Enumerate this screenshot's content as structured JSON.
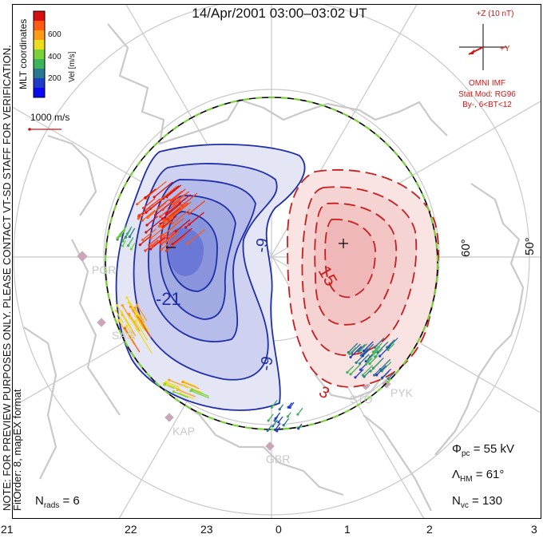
{
  "header": {
    "title": "14/Apr/2001 03:00–03:02 UT"
  },
  "side_text": {
    "coordinates": "MLT coordinates",
    "notice": "NOTE: FOR PREVIEW PURPOSES ONLY. PLEASE CONTACT VT-SD STAFF FOR VERIFICATION.",
    "fit": "FitOrder: 8, mapEX format"
  },
  "colorbar": {
    "label": "Vel [m/s]",
    "ticks": [
      "600",
      "400",
      "200"
    ],
    "colors": [
      "#d90f0f",
      "#ff5a14",
      "#ff9b19",
      "#eedc1e",
      "#78d23c",
      "#3cb45a",
      "#287890",
      "#1e3cc8",
      "#0a0af0"
    ]
  },
  "scale_vector": {
    "label": "1000 m/s"
  },
  "imf": {
    "z_label": "+Z (10 nT)",
    "y_label": "+Y",
    "source": "OMNI IMF",
    "model": "Stat Mod: RG96",
    "condition": "By-, 6<BT<12"
  },
  "latitude_labels": [
    "60°",
    "50°"
  ],
  "contour_labels": {
    "neg_9": "-9",
    "neg_21": "-21",
    "neg_9b": "-9",
    "pos_15": "15",
    "pos_3": "3"
  },
  "potential_markers": {
    "min": "−",
    "max": "+"
  },
  "stations": [
    "PGR",
    "SAS",
    "KAP",
    "GBR",
    "STO",
    "PYK"
  ],
  "stats": {
    "phi_pc": "55 kV",
    "lambda_hm": "61°",
    "n_vc": "130",
    "n_rads": "6"
  },
  "x_axis": {
    "ticks": [
      "21",
      "22",
      "23",
      "0",
      "1",
      "2",
      "3"
    ]
  },
  "colors": {
    "negative_cell": "#3848c8",
    "positive_cell": "#cc2a2a",
    "boundary_dash": "#7ad03a",
    "land": "#cfcfcf",
    "grid": "#c8c8c8"
  }
}
